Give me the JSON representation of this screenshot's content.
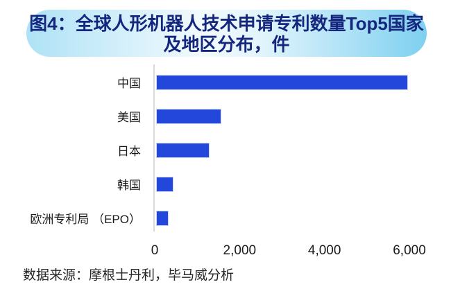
{
  "title": {
    "line1": "图4：全球人形机器人技术申请专利数量Top5国家",
    "line2": "及地区分布，件",
    "text_color": "#15267e",
    "box_gradient_left": "#aee2f6",
    "box_gradient_middle": "#f2fafd",
    "box_gradient_right": "#7ed0f0"
  },
  "chart_data": {
    "type": "bar",
    "orientation": "horizontal",
    "title": "图4：全球人形机器人技术申请专利数量Top5国家及地区分布，件",
    "unit": "件",
    "categories": [
      "中国",
      "美国",
      "日本",
      "韩国",
      "欧洲专利局 （EPO）"
    ],
    "values": [
      5900,
      1500,
      1230,
      380,
      265
    ],
    "xlim": [
      0,
      6000
    ],
    "x_ticks": [
      {
        "value": 0,
        "label": "0"
      },
      {
        "value": 2000,
        "label": "2,000"
      },
      {
        "value": 4000,
        "label": "4,000"
      },
      {
        "value": 6000,
        "label": "6,000"
      }
    ],
    "bar_color": "#2447db",
    "axis_line_color": "#d9d9d9",
    "grid": false,
    "legend_position": "none"
  },
  "footer": {
    "source_text": "数据来源：摩根士丹利，毕马威分析"
  }
}
